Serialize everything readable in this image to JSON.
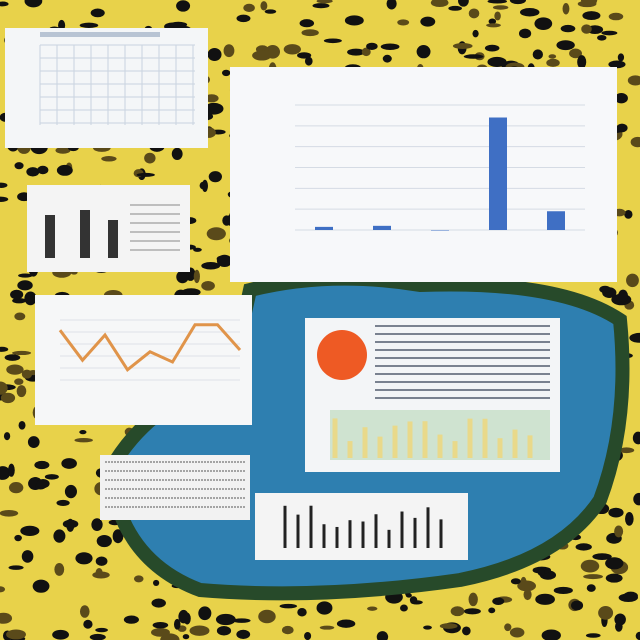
{
  "chart_data": [
    {
      "type": "bar",
      "categories": [
        null,
        null,
        null,
        null,
        null
      ],
      "values": [
        0.15,
        0.2,
        0,
        5.4,
        0.9
      ],
      "color": "#3f6fc4",
      "ylim": [
        0,
        6
      ],
      "yticks": [
        0,
        1,
        2,
        3,
        4,
        5,
        6
      ],
      "grid": true
    },
    {
      "type": "line",
      "categories": [
        null,
        null,
        null,
        null,
        null,
        null,
        null,
        null,
        null
      ],
      "values": [
        8.3,
        3.3,
        7.5,
        1.7,
        4.7,
        3,
        9.2,
        9.2,
        5
      ],
      "color": "#e0944a",
      "ylim": [
        0,
        10
      ],
      "yticks": [
        0,
        2,
        4,
        6,
        8,
        10
      ],
      "grid": true
    }
  ]
}
